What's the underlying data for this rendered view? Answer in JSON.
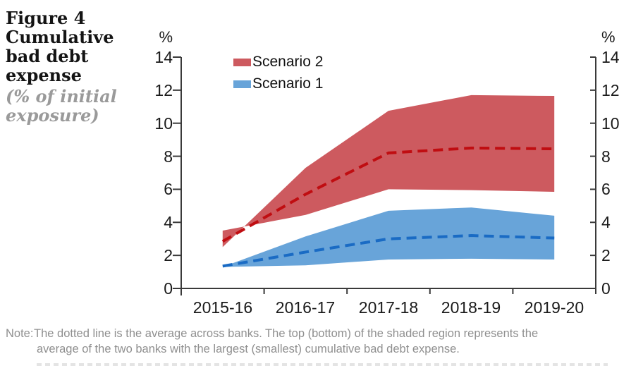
{
  "header": {
    "title_lines": [
      "Figure 4",
      "Cumulative",
      "bad debt",
      "expense"
    ],
    "subtitle_lines": [
      "(% of initial",
      "exposure)"
    ]
  },
  "legend": {
    "items": [
      {
        "label": "Scenario 2",
        "color": "#CD5A5F"
      },
      {
        "label": "Scenario 1",
        "color": "#68A4D9"
      }
    ]
  },
  "note": {
    "label": "Note:",
    "lines": [
      "The dotted line is the average across banks. The top (bottom) of the shaded region represents the",
      "average of the two banks with the largest (smallest) cumulative bad debt expense."
    ]
  },
  "colors": {
    "scenario2_fill": "#CD5A5F",
    "scenario2_line": "#C00D11",
    "scenario1_fill": "#68A4D9",
    "scenario1_line": "#1A6BC4",
    "axis": "#3a3a3a"
  },
  "chart_data": {
    "type": "area",
    "title": "Cumulative bad debt expense",
    "subtitle": "(% of initial exposure)",
    "categories": [
      "2015-16",
      "2016-17",
      "2017-18",
      "2018-19",
      "2019-20"
    ],
    "unit_label_left": "%",
    "unit_label_right": "%",
    "ylim": [
      0,
      14
    ],
    "y_ticks": [
      0,
      2,
      4,
      6,
      8,
      10,
      12,
      14
    ],
    "y_tick_labels_desc": [
      "14",
      "12",
      "10",
      "8",
      "6",
      "4",
      "2",
      "0"
    ],
    "grid": false,
    "legend_position": "top-center-inside",
    "series": [
      {
        "name": "Scenario 2 average",
        "type": "dashed-line",
        "color": "#C00D11",
        "values": [
          2.85,
          5.7,
          8.2,
          8.5,
          8.45
        ]
      },
      {
        "name": "Scenario 2 band",
        "type": "band",
        "fill": "#CD5A5F",
        "line_a": [
          2.5,
          7.3,
          10.75,
          11.7,
          11.65
        ],
        "line_b": [
          3.5,
          4.45,
          6.0,
          5.95,
          5.85
        ],
        "band_note": "line_a ends as band top, line_b as band bottom; the two edges cross just after 2015-16 (~3.7%)"
      },
      {
        "name": "Scenario 1 average",
        "type": "dashed-line",
        "color": "#1A6BC4",
        "values": [
          1.35,
          2.2,
          3.0,
          3.2,
          3.05
        ]
      },
      {
        "name": "Scenario 1 band",
        "type": "band",
        "fill": "#68A4D9",
        "line_a": [
          1.3,
          3.15,
          4.7,
          4.9,
          4.4
        ],
        "line_b": [
          1.3,
          1.4,
          1.75,
          1.8,
          1.75
        ]
      }
    ]
  }
}
